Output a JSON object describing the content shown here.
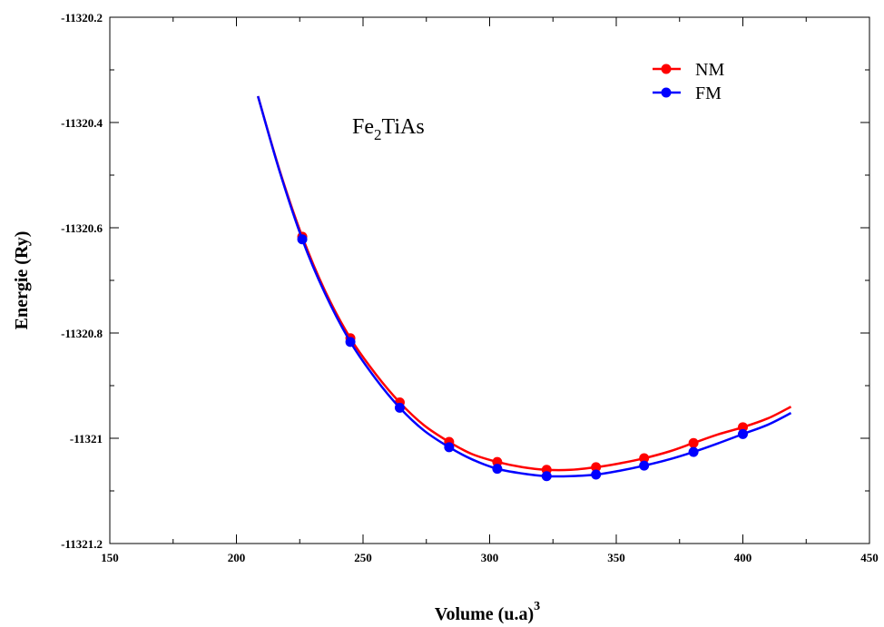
{
  "chart_data": {
    "type": "line",
    "title": "",
    "annotation": {
      "base": "Fe",
      "sub": "2",
      "rest": "TiAs"
    },
    "xlabel": {
      "text": "Volume (u.a)",
      "sup": "3"
    },
    "ylabel": "Energie (Ry)",
    "xlim": [
      150,
      450
    ],
    "ylim": [
      -11321.2,
      -11320.2
    ],
    "x_ticks": [
      150,
      200,
      250,
      300,
      350,
      400,
      450
    ],
    "y_ticks": [
      -11321.2,
      -11321,
      -11320.8,
      -11320.6,
      -11320.4,
      -11320.2
    ],
    "y_tick_labels": [
      "-11321.2",
      "-11321",
      "-11320.8",
      "-11320.6",
      "-11320.4",
      "-11320.2"
    ],
    "legend_position": "top-right",
    "grid": false,
    "series": [
      {
        "name": "NM",
        "color": "#ff0000",
        "points_x": [
          226,
          245,
          264.5,
          284,
          303,
          322.5,
          342,
          361,
          380.5,
          400
        ],
        "points_y": [
          -11320.617,
          -11320.81,
          -11320.932,
          -11321.007,
          -11321.045,
          -11321.06,
          -11321.055,
          -11321.038,
          -11321.009,
          -11320.979
        ],
        "curve_x": [
          208.5,
          217,
          226,
          235,
          245,
          255,
          264.5,
          274,
          284,
          293,
          303,
          313,
          322.5,
          332,
          342,
          351,
          361,
          371,
          380.5,
          390,
          400,
          410,
          419
        ],
        "curve_y": [
          -11320.35,
          -11320.49,
          -11320.617,
          -11320.72,
          -11320.81,
          -11320.878,
          -11320.932,
          -11320.975,
          -11321.007,
          -11321.03,
          -11321.045,
          -11321.055,
          -11321.06,
          -11321.06,
          -11321.055,
          -11321.048,
          -11321.038,
          -11321.025,
          -11321.009,
          -11320.993,
          -11320.979,
          -11320.962,
          -11320.94
        ]
      },
      {
        "name": "FM",
        "color": "#0000ff",
        "points_x": [
          226,
          245,
          264.5,
          284,
          303,
          322.5,
          342,
          361,
          380.5,
          400
        ],
        "points_y": [
          -11320.622,
          -11320.817,
          -11320.942,
          -11321.017,
          -11321.058,
          -11321.072,
          -11321.069,
          -11321.052,
          -11321.026,
          -11320.992
        ],
        "curve_x": [
          208.5,
          217,
          226,
          235,
          245,
          255,
          264.5,
          274,
          284,
          293,
          303,
          313,
          322.5,
          332,
          342,
          351,
          361,
          371,
          380.5,
          390,
          400,
          410,
          419
        ],
        "curve_y": [
          -11320.35,
          -11320.492,
          -11320.622,
          -11320.725,
          -11320.817,
          -11320.887,
          -11320.942,
          -11320.985,
          -11321.017,
          -11321.04,
          -11321.058,
          -11321.067,
          -11321.072,
          -11321.072,
          -11321.069,
          -11321.062,
          -11321.052,
          -11321.04,
          -11321.026,
          -11321.01,
          -11320.992,
          -11320.974,
          -11320.952
        ]
      }
    ]
  }
}
